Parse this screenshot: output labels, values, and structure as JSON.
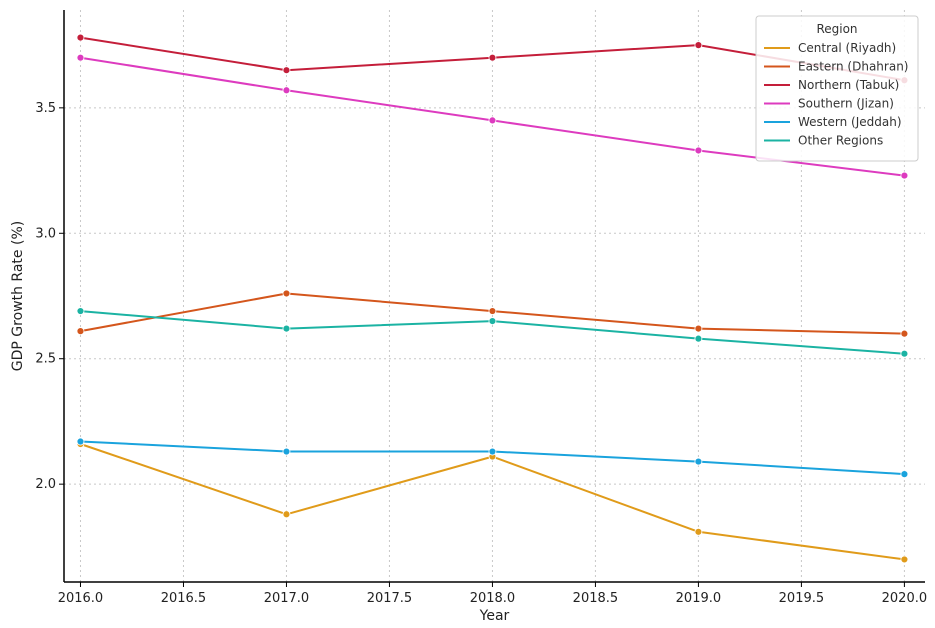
{
  "chart_data": {
    "type": "line",
    "title": "",
    "xlabel": "Year",
    "ylabel": "GDP Growth Rate (%)",
    "xlim": [
      2015.92,
      2020.1
    ],
    "ylim": [
      1.61,
      3.89
    ],
    "x_ticks": [
      2016.0,
      2016.5,
      2017.0,
      2017.5,
      2018.0,
      2018.5,
      2019.0,
      2019.5,
      2020.0
    ],
    "x_tick_labels": [
      "2016.0",
      "2016.5",
      "2017.0",
      "2017.5",
      "2018.0",
      "2018.5",
      "2019.0",
      "2019.5",
      "2020.0"
    ],
    "y_ticks": [
      2.0,
      2.5,
      3.0,
      3.5
    ],
    "y_tick_labels": [
      "2.0",
      "2.5",
      "3.0",
      "3.5"
    ],
    "grid": true,
    "legend": {
      "title": "Region",
      "position": "top-right"
    },
    "x": [
      2016,
      2017,
      2018,
      2019,
      2020
    ],
    "series": [
      {
        "name": "Central (Riyadh)",
        "color": "#e09b1a",
        "values": [
          2.16,
          1.88,
          2.11,
          1.81,
          1.7
        ]
      },
      {
        "name": "Eastern (Dhahran)",
        "color": "#d4561c",
        "values": [
          2.61,
          2.76,
          2.69,
          2.62,
          2.6
        ]
      },
      {
        "name": "Northern (Tabuk)",
        "color": "#c41e3a",
        "values": [
          3.78,
          3.65,
          3.7,
          3.75,
          3.61
        ]
      },
      {
        "name": "Southern (Jizan)",
        "color": "#dd3bbf",
        "values": [
          3.7,
          3.57,
          3.45,
          3.33,
          3.23
        ]
      },
      {
        "name": "Western (Jeddah)",
        "color": "#1aa3dd",
        "values": [
          2.17,
          2.13,
          2.13,
          2.09,
          2.04
        ]
      },
      {
        "name": "Other Regions",
        "color": "#1bb3a3",
        "values": [
          2.69,
          2.62,
          2.65,
          2.58,
          2.52
        ]
      }
    ]
  }
}
